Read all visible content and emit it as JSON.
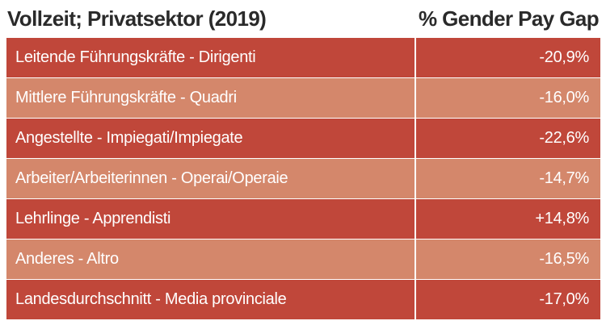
{
  "chart_data": {
    "type": "table",
    "columns": [
      "Vollzeit; Privatsektor (2019)",
      "% Gender Pay Gap"
    ],
    "rows": [
      {
        "label": "Leitende Führungskräfte - Dirigenti",
        "value": -20.9,
        "display": "-20,9%"
      },
      {
        "label": "Mittlere Führungskräfte - Quadri",
        "value": -16.0,
        "display": "-16,0%"
      },
      {
        "label": "Angestellte - Impiegati/Impiegate",
        "value": -22.6,
        "display": "-22,6%"
      },
      {
        "label": "Arbeiter/Arbeiterinnen - Operai/Operaie",
        "value": -14.7,
        "display": "-14,7%"
      },
      {
        "label": "Lehrlinge - Apprendisti",
        "value": 14.8,
        "display": "+14,8%"
      },
      {
        "label": "Anderes - Altro",
        "value": -16.5,
        "display": "-16,5%"
      },
      {
        "label": "Landesdurchschnitt - Media provinciale",
        "value": -17.0,
        "display": "-17,0%"
      }
    ],
    "colors": {
      "row_dark": "#c0473a",
      "row_light": "#d4876b",
      "text": "#ffffff",
      "header_text": "#2a2a2a"
    }
  }
}
